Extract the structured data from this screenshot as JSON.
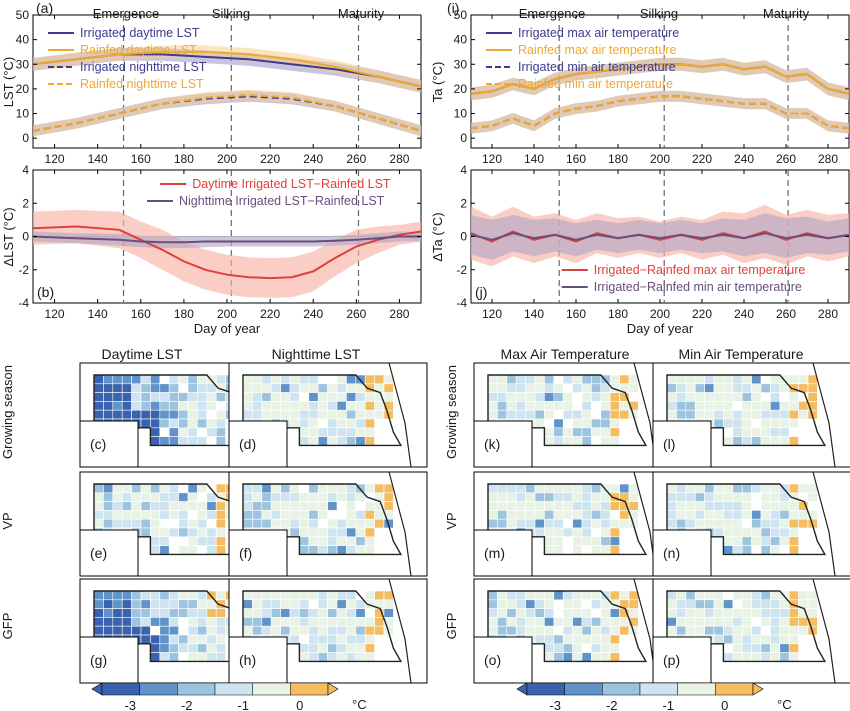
{
  "colors": {
    "irrigated": "#3b3b8f",
    "rainfed": "#f0a830",
    "irr_day_band": "#9b93c9",
    "rain_day_band": "#f6cf8e",
    "diff_day": "#e0403a",
    "diff_day_band": "#f7b3a6",
    "diff_night": "#6a4e7c",
    "diff_night_band": "#b5a8c6",
    "stage_line": "#666666",
    "axis": "#000000",
    "map_missing": "#ffffff",
    "map_border": "#222222"
  },
  "stages": {
    "labels": [
      "Emergence",
      "Silking",
      "Maturity"
    ],
    "doy": [
      152,
      202,
      261
    ]
  },
  "axes": {
    "x_label": "Day of year",
    "x_ticks": [
      "120",
      "140",
      "160",
      "180",
      "200",
      "220",
      "240",
      "260",
      "280"
    ],
    "xlim": [
      110,
      290
    ]
  },
  "chart_data": [
    {
      "panel": "(a)",
      "type": "line",
      "ylabel": "LST (°C)",
      "ylim": [
        -4,
        50
      ],
      "y_ticks": [
        "0",
        "10",
        "20",
        "30",
        "40",
        "50"
      ],
      "x": [
        110,
        130,
        150,
        170,
        190,
        210,
        230,
        250,
        270,
        290
      ],
      "series": [
        {
          "name": "Irrigated daytime LST",
          "style": "solid",
          "color": "irrigated",
          "values": [
            30,
            32,
            34,
            34,
            33,
            32,
            30,
            28,
            25,
            21
          ]
        },
        {
          "name": "Rainfed daytime LST",
          "style": "solid",
          "color": "rainfed",
          "values": [
            30,
            32,
            34,
            35,
            35,
            34,
            32,
            29,
            25,
            21
          ]
        },
        {
          "name": "Irrigated nighttime LST",
          "style": "dashed",
          "color": "irrigated",
          "values": [
            3,
            6,
            10,
            14,
            16,
            17,
            16,
            13,
            8,
            3
          ]
        },
        {
          "name": "Rainfed nighttime LST",
          "style": "dashed",
          "color": "rainfed",
          "values": [
            3,
            6,
            10,
            14,
            16.5,
            17.5,
            16.5,
            13,
            8,
            3
          ]
        }
      ],
      "legend": "top-left"
    },
    {
      "panel": "(b)",
      "type": "line",
      "ylabel": "ΔLST (°C)",
      "ylim": [
        -4,
        4
      ],
      "y_ticks": [
        "-4",
        "-2",
        "0",
        "2",
        "4"
      ],
      "x": [
        110,
        130,
        150,
        160,
        170,
        180,
        190,
        200,
        210,
        220,
        230,
        240,
        250,
        260,
        270,
        280,
        290
      ],
      "series": [
        {
          "name": "Daytime Irrigated LST−Rainfed LST",
          "color": "diff_day",
          "values": [
            0.5,
            0.6,
            0.4,
            -0.2,
            -0.8,
            -1.5,
            -2.0,
            -2.3,
            -2.45,
            -2.5,
            -2.45,
            -2.1,
            -1.3,
            -0.6,
            -0.2,
            0.1,
            0.3
          ],
          "band": [
            1.0,
            1.0,
            1.1,
            1.1,
            1.2,
            1.2,
            1.2,
            1.2,
            1.2,
            1.2,
            1.2,
            1.2,
            1.1,
            1.0,
            0.8,
            0.6,
            0.6
          ]
        },
        {
          "name": "Nighttime Irrigated LST−Rainfed LST",
          "color": "diff_night",
          "values": [
            0,
            -0.1,
            -0.2,
            -0.3,
            -0.35,
            -0.35,
            -0.3,
            -0.3,
            -0.3,
            -0.3,
            -0.3,
            -0.3,
            -0.25,
            -0.2,
            -0.1,
            0,
            0
          ],
          "band": [
            0.3,
            0.3,
            0.35,
            0.35,
            0.35,
            0.35,
            0.35,
            0.3,
            0.3,
            0.3,
            0.3,
            0.3,
            0.3,
            0.3,
            0.3,
            0.3,
            0.3
          ]
        }
      ],
      "legend": "top-right"
    },
    {
      "panel": "(i)",
      "type": "line",
      "ylabel": "Ta (°C)",
      "ylim": [
        -4,
        50
      ],
      "y_ticks": [
        "0",
        "10",
        "20",
        "30",
        "40",
        "50"
      ],
      "x": [
        110,
        120,
        130,
        140,
        150,
        160,
        170,
        180,
        190,
        200,
        210,
        220,
        230,
        240,
        250,
        260,
        270,
        280,
        290
      ],
      "series": [
        {
          "name": "Irrigated max air temperature",
          "style": "solid",
          "color": "irrigated",
          "values": [
            18,
            19,
            22,
            20,
            24,
            26,
            27,
            28,
            29,
            30,
            30,
            29,
            30,
            28,
            29,
            25,
            26,
            20,
            18
          ]
        },
        {
          "name": "Rainfed max air temperature",
          "style": "solid",
          "color": "rainfed",
          "values": [
            18,
            19,
            22,
            20,
            24,
            26,
            27,
            28,
            29,
            30,
            30,
            29,
            30,
            28,
            29,
            25,
            26,
            20,
            18
          ]
        },
        {
          "name": "Irrigated min air temperature",
          "style": "dashed",
          "color": "irrigated",
          "values": [
            4,
            5,
            8,
            5,
            10,
            12,
            13,
            15,
            16,
            17,
            17,
            16,
            15,
            14,
            14,
            10,
            10,
            5,
            4
          ]
        },
        {
          "name": "Rainfed min air temperature",
          "style": "dashed",
          "color": "rainfed",
          "values": [
            4,
            5,
            8,
            5,
            10,
            12,
            13,
            15,
            16,
            17,
            17,
            16,
            15,
            14,
            14,
            10,
            10,
            5,
            4
          ]
        }
      ],
      "legend": "top-left"
    },
    {
      "panel": "(j)",
      "type": "line",
      "ylabel": "ΔTa (°C)",
      "ylim": [
        -4,
        4
      ],
      "y_ticks": [
        "-4",
        "-2",
        "0",
        "2",
        "4"
      ],
      "x": [
        110,
        120,
        130,
        140,
        150,
        160,
        170,
        180,
        190,
        200,
        210,
        220,
        230,
        240,
        250,
        260,
        270,
        280,
        290
      ],
      "series": [
        {
          "name": "Irrigated−Rainfed max air temperature",
          "color": "diff_day",
          "values": [
            0.2,
            -0.3,
            0.3,
            -0.2,
            0.1,
            -0.3,
            0.2,
            -0.1,
            0.1,
            -0.2,
            0.1,
            -0.2,
            0.2,
            -0.1,
            0.3,
            -0.2,
            0.2,
            -0.1,
            0.1
          ],
          "band": [
            1.6,
            1.5,
            1.5,
            1.4,
            1.3,
            1.3,
            1.2,
            1.2,
            1.1,
            1.1,
            1.1,
            1.2,
            1.3,
            1.5,
            1.6,
            1.5,
            1.4,
            1.4,
            1.3
          ]
        },
        {
          "name": "Irrigated−Rainfed min air temperature",
          "color": "diff_night",
          "values": [
            0.1,
            -0.2,
            0.2,
            -0.1,
            0.1,
            -0.2,
            0.1,
            -0.1,
            0.1,
            -0.1,
            0.1,
            -0.1,
            0.1,
            -0.1,
            0.2,
            -0.1,
            0.1,
            -0.1,
            0.1
          ],
          "band": [
            1.2,
            1.2,
            1.1,
            1.1,
            1.0,
            1.0,
            0.9,
            0.9,
            0.9,
            0.9,
            0.9,
            0.9,
            1.0,
            1.1,
            1.2,
            1.2,
            1.1,
            1.0,
            1.0
          ]
        }
      ],
      "legend": "bottom-right"
    }
  ],
  "maps": {
    "column_titles": [
      "Daytime LST",
      "Nighttime LST",
      "Max Air Temperature",
      "Min Air Temperature"
    ],
    "row_labels": [
      "Growing season",
      "VP",
      "GFP"
    ],
    "panel_letters": [
      "(c)",
      "(d)",
      "(e)",
      "(f)",
      "(g)",
      "(h)",
      "(k)",
      "(l)",
      "(m)",
      "(n)",
      "(o)",
      "(p)"
    ],
    "palette": [
      "#3a62ae",
      "#5f93c9",
      "#9cc4df",
      "#cfe4f1",
      "#e8f3e6",
      "#f5bd62"
    ],
    "colorbar": {
      "ticks": [
        "-3",
        "-2",
        "-1",
        "0"
      ],
      "unit": "°C",
      "range": [
        -3.5,
        0.5
      ]
    }
  }
}
